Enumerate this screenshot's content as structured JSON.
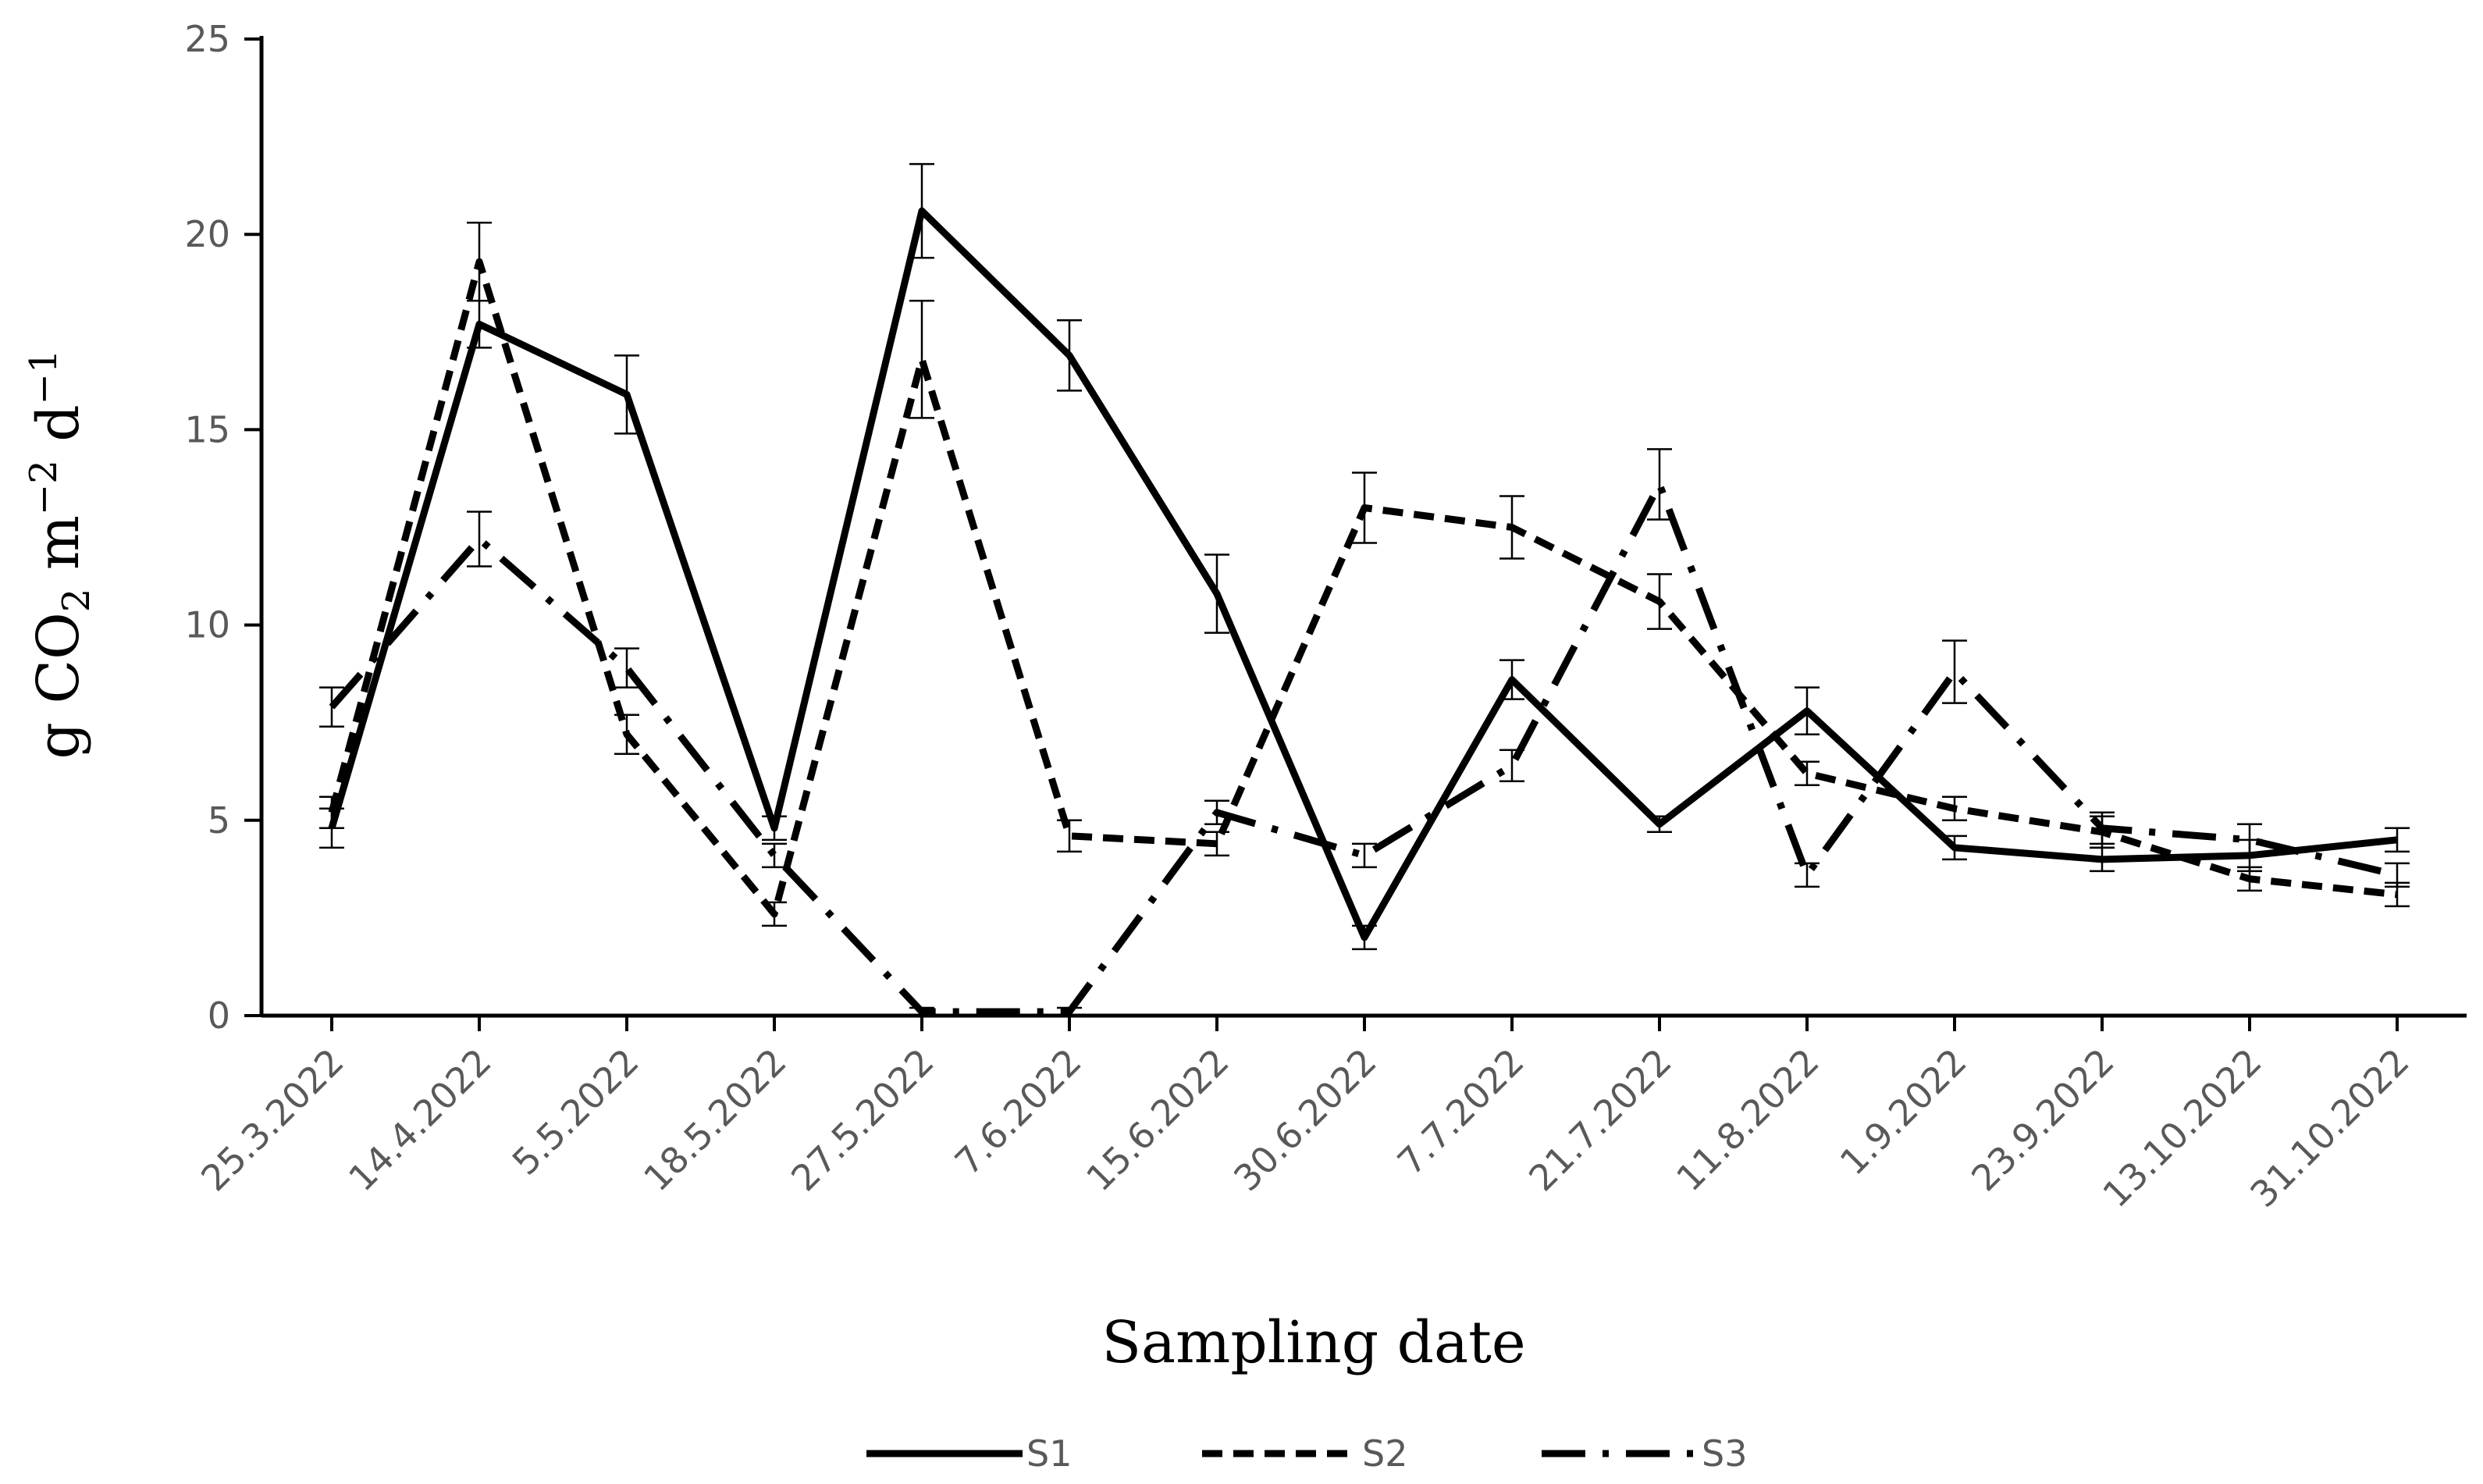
{
  "chart_data": {
    "type": "line",
    "title": "",
    "xlabel": "Sampling date",
    "ylabel_parts": {
      "main": "g CO",
      "sub": "2",
      "m": " m",
      "m_exp": "−2",
      "d": " d",
      "d_exp": "−1"
    },
    "ylim": [
      0,
      25
    ],
    "yticks": [
      "0",
      "5",
      "10",
      "15",
      "20",
      "25"
    ],
    "categories": [
      "25.3.2022",
      "14.4.2022",
      "5.5.2022",
      "18.5.2022",
      "27.5.2022",
      "7.6.2022",
      "15.6.2022",
      "30.6.2022",
      "7.7.2022",
      "21.7.2022",
      "11.8.2022",
      "1.9.2022",
      "23.9.2022",
      "13.10.2022",
      "31.10.2022"
    ],
    "legend_position": "bottom",
    "grid": false,
    "series": [
      {
        "name": "S1",
        "style": "solid",
        "values": [
          4.8,
          17.7,
          15.9,
          4.8,
          20.6,
          16.9,
          10.8,
          2.0,
          8.6,
          4.9,
          7.8,
          4.3,
          4.0,
          4.1,
          4.5
        ],
        "errors": [
          0.5,
          0.6,
          1.0,
          0.3,
          1.2,
          0.9,
          1.0,
          0.3,
          0.5,
          0.2,
          0.6,
          0.3,
          0.3,
          0.4,
          0.3
        ]
      },
      {
        "name": "S2",
        "style": "dashed",
        "values": [
          5.2,
          19.3,
          7.2,
          2.6,
          16.8,
          4.6,
          4.4,
          13.0,
          12.5,
          10.6,
          6.2,
          5.3,
          4.7,
          3.5,
          3.1
        ],
        "errors": [
          0.4,
          1.0,
          0.5,
          0.3,
          1.5,
          0.4,
          0.3,
          0.9,
          0.8,
          0.7,
          0.3,
          0.3,
          0.4,
          0.3,
          0.3
        ]
      },
      {
        "name": "S3",
        "style": "dashdot",
        "values": [
          7.9,
          12.2,
          8.9,
          4.1,
          0.1,
          0.1,
          5.2,
          4.1,
          6.4,
          13.6,
          3.6,
          8.8,
          4.8,
          4.5,
          3.6
        ],
        "errors": [
          0.5,
          0.7,
          0.5,
          0.3,
          0.1,
          0.1,
          0.3,
          0.3,
          0.4,
          0.9,
          0.3,
          0.8,
          0.4,
          0.4,
          0.3
        ]
      }
    ],
    "colors": {
      "line": "#000000",
      "axis": "#000000",
      "tick_text": "#595959"
    }
  }
}
